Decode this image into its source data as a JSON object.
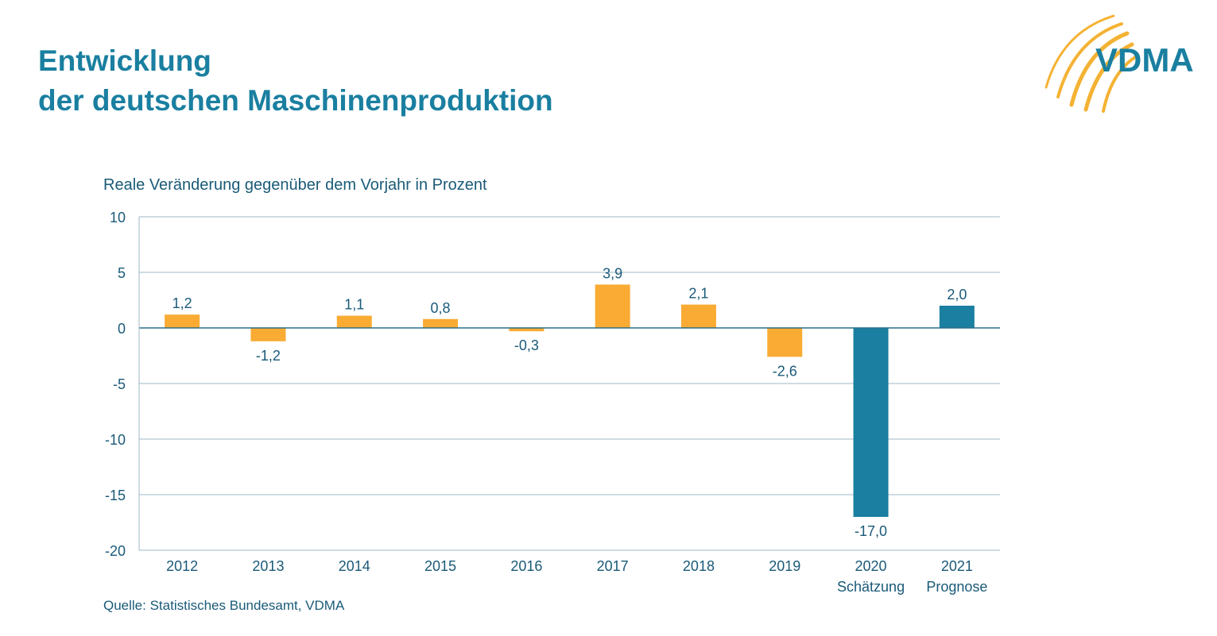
{
  "title_lines": [
    "Entwicklung",
    "der deutschen Maschinenproduktion"
  ],
  "logo": {
    "text": "VDMA",
    "brand_color": "#1a7fa0",
    "accent_color": "#f4b233"
  },
  "chart_data": {
    "type": "bar",
    "subtitle": "Reale Veränderung gegenüber dem Vorjahr in Prozent",
    "categories": [
      "2012",
      "2013",
      "2014",
      "2015",
      "2016",
      "2017",
      "2018",
      "2019",
      "2020",
      "2021"
    ],
    "category_sublabels": [
      "",
      "",
      "",
      "",
      "",
      "",
      "",
      "",
      "Schätzung",
      "Prognose"
    ],
    "values": [
      1.2,
      -1.2,
      1.1,
      0.8,
      -0.3,
      3.9,
      2.1,
      -2.6,
      -17.0,
      2.0
    ],
    "value_labels": [
      "1,2",
      "-1,2",
      "1,1",
      "0,8",
      "-0,3",
      "3,9",
      "2,1",
      "-2,6",
      "-17,0",
      "2,0"
    ],
    "bar_colors": [
      "#f9ab34",
      "#f9ab34",
      "#f9ab34",
      "#f9ab34",
      "#f9ab34",
      "#f9ab34",
      "#f9ab34",
      "#f9ab34",
      "#1a7fa0",
      "#1a7fa0"
    ],
    "y_ticks": [
      10,
      5,
      0,
      -5,
      -10,
      -15,
      -20
    ],
    "ylim": [
      -20,
      10
    ],
    "grid": true,
    "source": "Quelle: Statistisches Bundesamt, VDMA",
    "text_color": "#1a5a78",
    "grid_color": "#9fb9c6"
  }
}
